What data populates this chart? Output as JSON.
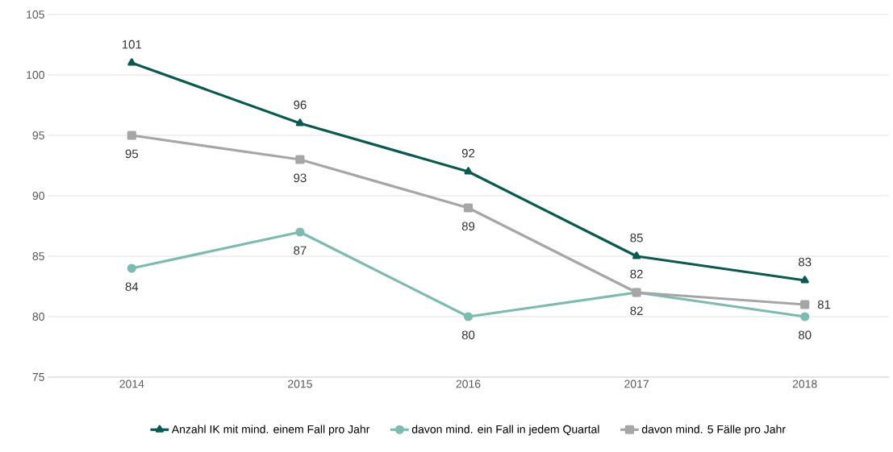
{
  "chart_data": {
    "type": "line",
    "categories": [
      "2014",
      "2015",
      "2016",
      "2017",
      "2018"
    ],
    "series": [
      {
        "name": "Anzahl IK mit mind. einem Fall pro Jahr",
        "color": "#0b5950",
        "marker": "triangle",
        "values": [
          101,
          96,
          92,
          85,
          83
        ]
      },
      {
        "name": "davon mind. ein Fall in jedem Quartal",
        "color": "#7fbab2",
        "marker": "circle",
        "values": [
          84,
          87,
          80,
          82,
          80
        ]
      },
      {
        "name": "davon mind. 5 Fälle pro Jahr",
        "color": "#a6a6a6",
        "marker": "square",
        "values": [
          95,
          93,
          89,
          82,
          81
        ]
      }
    ],
    "ylim": [
      75,
      105
    ],
    "yticks": [
      75,
      80,
      85,
      90,
      95,
      100,
      105
    ],
    "grid": "y",
    "legend": "bottom",
    "data_labels": true,
    "line_style": "solid"
  }
}
